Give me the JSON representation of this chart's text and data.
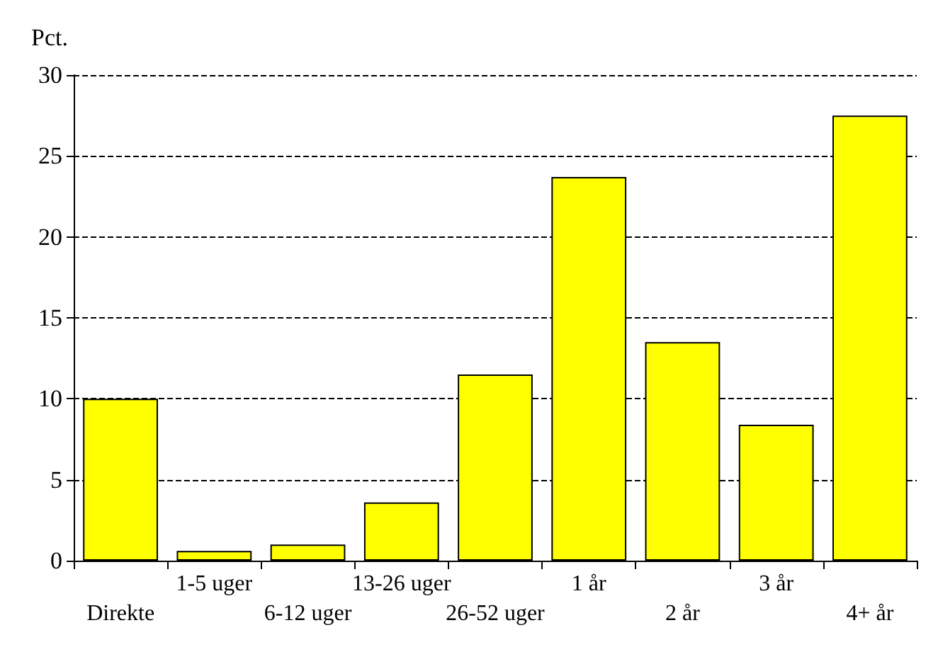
{
  "chart_data": {
    "type": "bar",
    "ylabel": "Pct.",
    "categories": [
      "Direkte",
      "1-5 uger",
      "6-12 uger",
      "13-26 uger",
      "26-52 uger",
      "1 år",
      "2 år",
      "3 år",
      "4+ år"
    ],
    "values": [
      10,
      0.6,
      1.0,
      3.6,
      11.5,
      23.7,
      13.5,
      8.4,
      27.5
    ],
    "color": "#ffff00",
    "ylim": [
      0,
      30
    ],
    "yticks": [
      0,
      5,
      10,
      15,
      20,
      25,
      30
    ],
    "grid": "y",
    "line_style": "dashed"
  }
}
